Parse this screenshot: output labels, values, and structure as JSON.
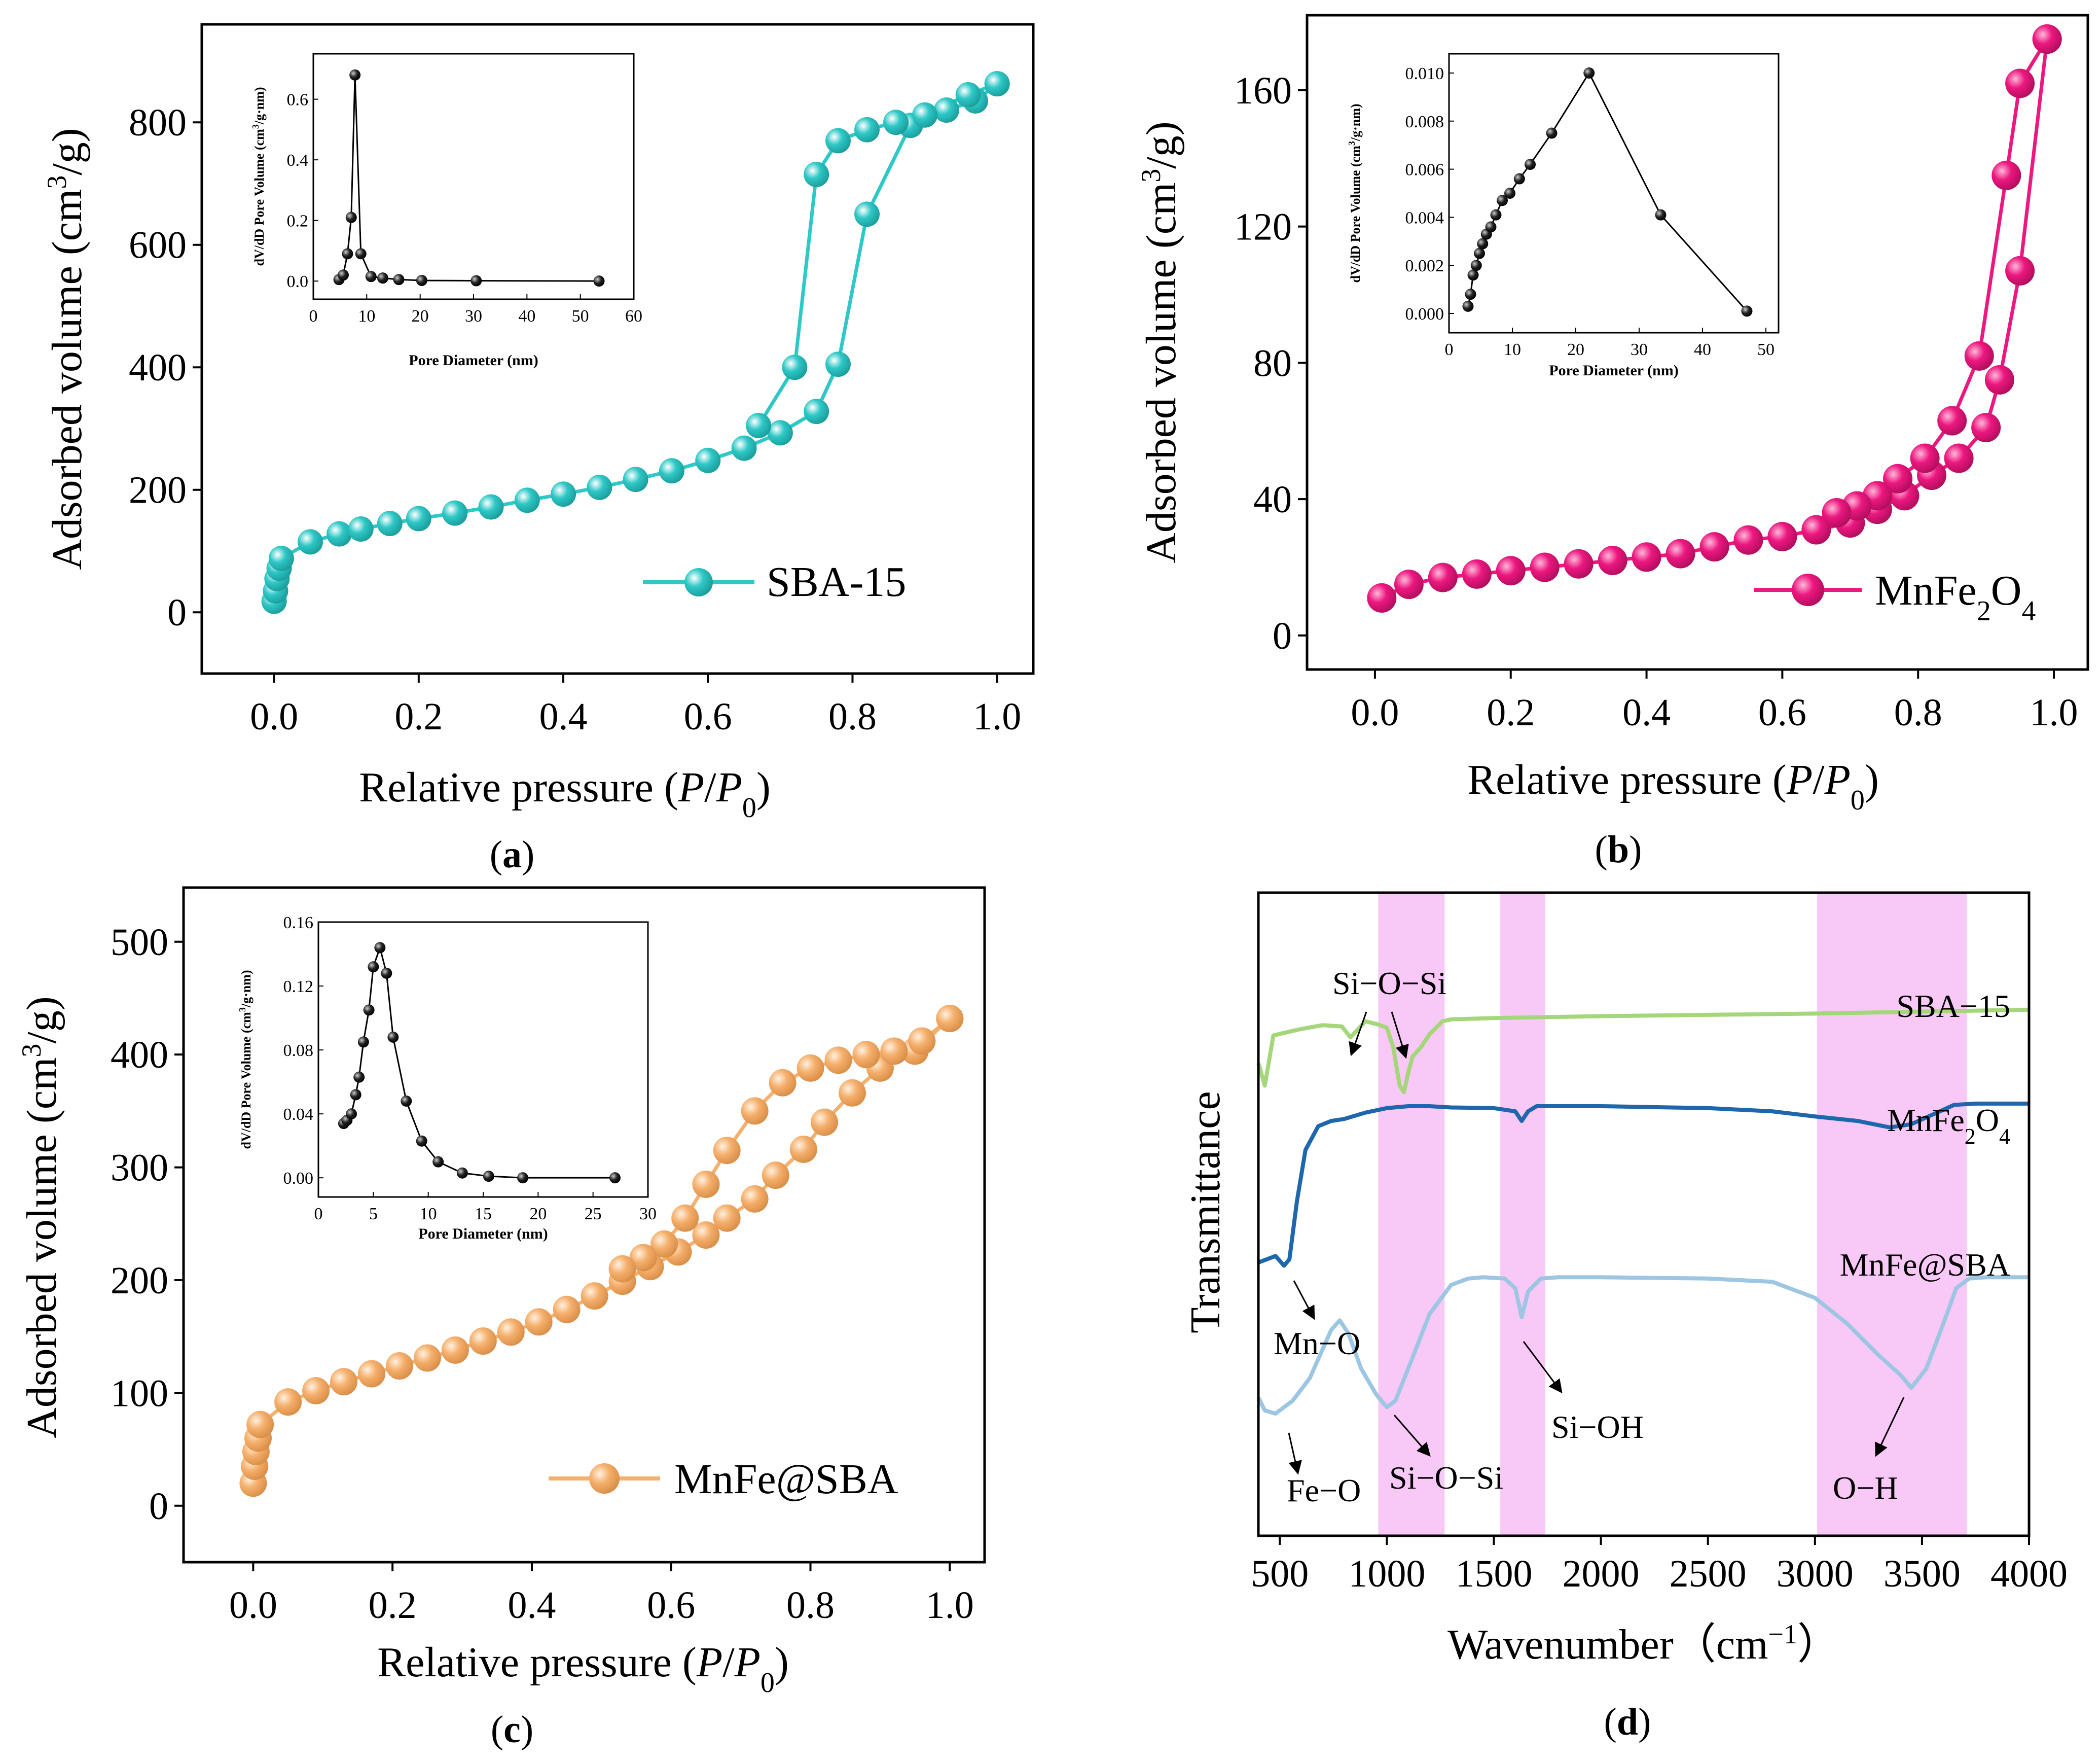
{
  "colors": {
    "sba": "#2ec8c6",
    "mnfe": "#ec177f",
    "mnfesba": "#f5b06d",
    "inset": "#000000",
    "band": "#f3a3f0",
    "ftir_sba": "#a4d67a",
    "ftir_mnfe": "#1f67ad",
    "ftir_mnfesba": "#9dc6e2"
  },
  "chart_data": [
    {
      "id": "a",
      "type": "scatter",
      "panel_label": "(a)",
      "xlabel": "Relative pressure (P/P0)",
      "xlabel_parts": [
        "Relative pressure (",
        "P",
        "/",
        "P",
        "0",
        ")"
      ],
      "ylabel": "Adsorbed volume (cm3/g)",
      "ylabel_parts": [
        "Adsorbed volume (cm",
        "3",
        "/g)"
      ],
      "xlim": [
        -0.1,
        1.05
      ],
      "ylim": [
        -100,
        960
      ],
      "xticks": [
        0.0,
        0.2,
        0.4,
        0.6,
        0.8,
        1.0
      ],
      "xtick_labels": [
        "0.0",
        "0.2",
        "0.4",
        "0.6",
        "0.8",
        "1.0"
      ],
      "yticks": [
        0,
        200,
        400,
        600,
        800
      ],
      "ytick_labels": [
        "0",
        "200",
        "400",
        "600",
        "800"
      ],
      "legend": "SBA-15",
      "series": [
        {
          "name": "adsorption",
          "x": [
            0.0,
            0.002,
            0.004,
            0.007,
            0.01,
            0.05,
            0.09,
            0.12,
            0.16,
            0.2,
            0.25,
            0.3,
            0.35,
            0.4,
            0.45,
            0.5,
            0.55,
            0.6,
            0.65,
            0.7,
            0.75,
            0.78,
            0.82,
            0.88,
            0.93,
            0.97,
            1.0
          ],
          "y": [
            18,
            35,
            55,
            72,
            88,
            115,
            128,
            136,
            145,
            153,
            162,
            172,
            183,
            193,
            204,
            217,
            231,
            248,
            268,
            293,
            328,
            405,
            650,
            795,
            820,
            835,
            863
          ]
        },
        {
          "name": "desorption",
          "x": [
            1.0,
            0.96,
            0.9,
            0.86,
            0.82,
            0.78,
            0.75,
            0.72,
            0.67
          ],
          "y": [
            863,
            845,
            812,
            800,
            788,
            770,
            715,
            400,
            305
          ]
        }
      ],
      "inset": {
        "xlabel": "Pore Diameter (nm)",
        "ylabel": "dV/dD Pore Volume (cm3/g·nm)",
        "xlim": [
          0,
          60
        ],
        "ylim": [
          -0.06,
          0.75
        ],
        "xticks": [
          0,
          10,
          20,
          30,
          40,
          50,
          60
        ],
        "xtick_labels": [
          "0",
          "10",
          "20",
          "30",
          "40",
          "50",
          "60"
        ],
        "yticks": [
          0.0,
          0.2,
          0.4,
          0.6
        ],
        "ytick_labels": [
          "0.0",
          "0.2",
          "0.4",
          "0.6"
        ],
        "x": [
          4.8,
          5.6,
          6.4,
          7.1,
          7.8,
          8.9,
          10.8,
          13.0,
          16.0,
          20.3,
          30.5,
          53.5
        ],
        "y": [
          0.005,
          0.02,
          0.09,
          0.21,
          0.68,
          0.09,
          0.015,
          0.01,
          0.005,
          0.002,
          0.001,
          0.0
        ]
      }
    },
    {
      "id": "b",
      "type": "scatter",
      "panel_label": "(b)",
      "xlabel": "Relative pressure (P/P0)",
      "xlabel_parts": [
        "Relative pressure (",
        "P",
        "/",
        "P",
        "0",
        ")"
      ],
      "ylabel": "Adsorbed volume (cm3/g)",
      "ylabel_parts": [
        "Adsorbed volume (cm",
        "3",
        "/g)"
      ],
      "xlim": [
        -0.1,
        1.05
      ],
      "ylim": [
        -10,
        182
      ],
      "xticks": [
        0.0,
        0.2,
        0.4,
        0.6,
        0.8,
        1.0
      ],
      "xtick_labels": [
        "0.0",
        "0.2",
        "0.4",
        "0.6",
        "0.8",
        "1.0"
      ],
      "yticks": [
        0,
        40,
        80,
        120,
        160
      ],
      "ytick_labels": [
        "0",
        "40",
        "80",
        "120",
        "160"
      ],
      "legend": "MnFe2O4",
      "legend_parts": [
        "MnFe",
        "2",
        "O",
        "4"
      ],
      "series": [
        {
          "name": "adsorption",
          "x": [
            0.01,
            0.05,
            0.1,
            0.15,
            0.2,
            0.25,
            0.3,
            0.35,
            0.4,
            0.45,
            0.5,
            0.55,
            0.6,
            0.65,
            0.7,
            0.74,
            0.78,
            0.82,
            0.86,
            0.9,
            0.92,
            0.95,
            0.99
          ],
          "y": [
            11,
            15,
            17,
            18,
            19,
            20,
            21,
            22,
            23,
            24,
            26,
            28,
            29,
            31,
            33,
            37,
            41,
            47,
            52,
            61,
            75,
            107,
            175
          ]
        },
        {
          "name": "desorption",
          "x": [
            0.99,
            0.95,
            0.93,
            0.89,
            0.85,
            0.81,
            0.77,
            0.74,
            0.71,
            0.68
          ],
          "y": [
            175,
            162,
            135,
            82,
            63,
            52,
            46,
            41,
            38,
            36
          ]
        }
      ],
      "inset": {
        "xlabel": "Pore Diameter (nm)",
        "ylabel": "dV/dD Pore Volume (cm3/g·nm)",
        "xlim": [
          0,
          52
        ],
        "ylim": [
          -0.0008,
          0.0108
        ],
        "xticks": [
          0,
          10,
          20,
          30,
          40,
          50
        ],
        "xtick_labels": [
          "0",
          "10",
          "20",
          "30",
          "40",
          "50"
        ],
        "yticks": [
          0.0,
          0.002,
          0.004,
          0.006,
          0.008,
          0.01
        ],
        "ytick_labels": [
          "0.000",
          "0.002",
          "0.004",
          "0.006",
          "0.008",
          "0.010"
        ],
        "x": [
          3.0,
          3.4,
          3.8,
          4.3,
          4.8,
          5.3,
          5.9,
          6.6,
          7.4,
          8.4,
          9.6,
          11.1,
          12.8,
          16.2,
          22.1,
          33.4,
          47.0
        ],
        "y": [
          0.0003,
          0.0008,
          0.0016,
          0.002,
          0.0025,
          0.0029,
          0.0033,
          0.0036,
          0.0041,
          0.0047,
          0.005,
          0.0056,
          0.0062,
          0.0075,
          0.01,
          0.0041,
          0.0001
        ]
      }
    },
    {
      "id": "c",
      "type": "scatter",
      "panel_label": "(c)",
      "xlabel": "Relative pressure (P/P0)",
      "xlabel_parts": [
        "Relative pressure (",
        "P",
        "/",
        "P",
        "0",
        ")"
      ],
      "ylabel": "Adsorbed volume (cm3/g)",
      "ylabel_parts": [
        "Adsorbed volume (cm",
        "3",
        "/g)"
      ],
      "xlim": [
        -0.1,
        1.05
      ],
      "ylim": [
        -50,
        548
      ],
      "xticks": [
        0.0,
        0.2,
        0.4,
        0.6,
        0.8,
        1.0
      ],
      "xtick_labels": [
        "0.0",
        "0.2",
        "0.4",
        "0.6",
        "0.8",
        "1.0"
      ],
      "yticks": [
        0,
        100,
        200,
        300,
        400,
        500
      ],
      "ytick_labels": [
        "0",
        "100",
        "200",
        "300",
        "400",
        "500"
      ],
      "legend": "MnFe@SBA",
      "series": [
        {
          "name": "adsorption",
          "x": [
            0.0,
            0.002,
            0.004,
            0.007,
            0.01,
            0.05,
            0.09,
            0.13,
            0.17,
            0.21,
            0.25,
            0.29,
            0.33,
            0.37,
            0.41,
            0.45,
            0.49,
            0.53,
            0.57,
            0.61,
            0.65,
            0.68,
            0.72,
            0.75,
            0.79,
            0.82,
            0.86,
            0.9,
            0.95,
            1.0
          ],
          "y": [
            20,
            35,
            48,
            60,
            72,
            92,
            102,
            110,
            117,
            124,
            131,
            138,
            146,
            154,
            163,
            174,
            186,
            199,
            212,
            225,
            240,
            255,
            272,
            293,
            316,
            340,
            366,
            388,
            403,
            432
          ]
        },
        {
          "name": "desorption",
          "x": [
            1.0,
            0.96,
            0.92,
            0.88,
            0.84,
            0.8,
            0.76,
            0.72,
            0.68,
            0.65,
            0.62,
            0.59,
            0.56,
            0.53
          ],
          "y": [
            432,
            412,
            403,
            400,
            395,
            388,
            375,
            350,
            315,
            285,
            255,
            232,
            220,
            210
          ]
        }
      ],
      "inset": {
        "xlabel": "Pore Diameter (nm)",
        "ylabel": "dV/dD Pore Volume (cm3/g·nm)",
        "xlim": [
          0,
          30
        ],
        "ylim": [
          -0.012,
          0.16
        ],
        "xticks": [
          0,
          5,
          10,
          15,
          20,
          25,
          30
        ],
        "xtick_labels": [
          "0",
          "5",
          "10",
          "15",
          "20",
          "25",
          "30"
        ],
        "yticks": [
          0.0,
          0.04,
          0.08,
          0.12,
          0.16
        ],
        "ytick_labels": [
          "0.00",
          "0.04",
          "0.08",
          "0.12",
          "0.16"
        ],
        "x": [
          2.3,
          2.6,
          3.0,
          3.4,
          3.7,
          4.1,
          4.6,
          5.0,
          5.6,
          6.2,
          6.8,
          8.0,
          9.4,
          10.9,
          13.1,
          15.5,
          18.6,
          27.0
        ],
        "y": [
          0.034,
          0.036,
          0.04,
          0.052,
          0.063,
          0.085,
          0.105,
          0.132,
          0.144,
          0.128,
          0.088,
          0.048,
          0.023,
          0.01,
          0.003,
          0.001,
          0.0,
          0.0
        ]
      }
    },
    {
      "id": "d",
      "type": "line",
      "panel_label": "(d)",
      "xlabel": "Wavenumber (cm-1)",
      "xlabel_parts": [
        "Wavenumber（cm",
        "−1",
        "）"
      ],
      "ylabel": "Transmittance",
      "xlim": [
        400,
        4000
      ],
      "ylim": [
        0,
        1
      ],
      "xticks": [
        500,
        1000,
        1500,
        2000,
        2500,
        3000,
        3500,
        4000
      ],
      "xtick_labels": [
        "500",
        "1000",
        "1500",
        "2000",
        "2500",
        "3000",
        "3500",
        "4000"
      ],
      "bands": [
        [
          960,
          1270
        ],
        [
          1530,
          1740
        ],
        [
          3010,
          3710
        ]
      ],
      "series": [
        {
          "name": "SBA−15",
          "label_parts": [
            "SBA−15"
          ],
          "x": [
            400,
            430,
            470,
            520,
            600,
            700,
            790,
            830,
            900,
            960,
            1000,
            1030,
            1060,
            1080,
            1100,
            1120,
            1160,
            1200,
            1260,
            1300,
            1500,
            2000,
            2500,
            3000,
            3500,
            4000
          ],
          "y": [
            0.735,
            0.7,
            0.778,
            0.782,
            0.788,
            0.794,
            0.792,
            0.775,
            0.8,
            0.795,
            0.79,
            0.76,
            0.7,
            0.69,
            0.72,
            0.745,
            0.76,
            0.78,
            0.8,
            0.803,
            0.805,
            0.808,
            0.81,
            0.812,
            0.815,
            0.818
          ]
        },
        {
          "name": "MnFe2O4",
          "label_parts": [
            "MnFe",
            "2",
            "O",
            "4"
          ],
          "x": [
            400,
            440,
            480,
            520,
            545,
            580,
            620,
            680,
            740,
            800,
            900,
            1000,
            1100,
            1200,
            1300,
            1500,
            1600,
            1630,
            1660,
            1700,
            1800,
            2000,
            2500,
            2800,
            3000,
            3200,
            3350,
            3450,
            3550,
            3650,
            3750,
            4000
          ],
          "y": [
            0.425,
            0.43,
            0.435,
            0.42,
            0.43,
            0.52,
            0.6,
            0.637,
            0.645,
            0.648,
            0.658,
            0.665,
            0.668,
            0.668,
            0.666,
            0.665,
            0.66,
            0.645,
            0.66,
            0.668,
            0.668,
            0.668,
            0.665,
            0.66,
            0.652,
            0.645,
            0.635,
            0.64,
            0.655,
            0.67,
            0.672,
            0.672
          ]
        },
        {
          "name": "MnFe@SBA",
          "label_parts": [
            "MnFe@SBA"
          ],
          "x": [
            400,
            430,
            480,
            560,
            640,
            700,
            740,
            780,
            820,
            880,
            950,
            1000,
            1040,
            1100,
            1200,
            1300,
            1380,
            1450,
            1550,
            1600,
            1630,
            1660,
            1720,
            1800,
            2000,
            2500,
            2800,
            3000,
            3150,
            3300,
            3400,
            3450,
            3520,
            3600,
            3660,
            3720,
            3800,
            4000
          ],
          "y": [
            0.215,
            0.195,
            0.19,
            0.21,
            0.245,
            0.29,
            0.32,
            0.335,
            0.315,
            0.26,
            0.22,
            0.2,
            0.21,
            0.26,
            0.345,
            0.39,
            0.4,
            0.402,
            0.4,
            0.385,
            0.34,
            0.38,
            0.4,
            0.402,
            0.402,
            0.4,
            0.395,
            0.37,
            0.33,
            0.28,
            0.25,
            0.23,
            0.26,
            0.33,
            0.385,
            0.4,
            0.402,
            0.402
          ]
        }
      ],
      "annotations": {
        "si_o_si_top": "Si−O−Si",
        "mn_o": "Mn−O",
        "fe_o": "Fe−O",
        "si_o_si_bottom": "Si−O−Si",
        "si_oh": "Si−OH",
        "o_h": "O−H"
      }
    }
  ]
}
